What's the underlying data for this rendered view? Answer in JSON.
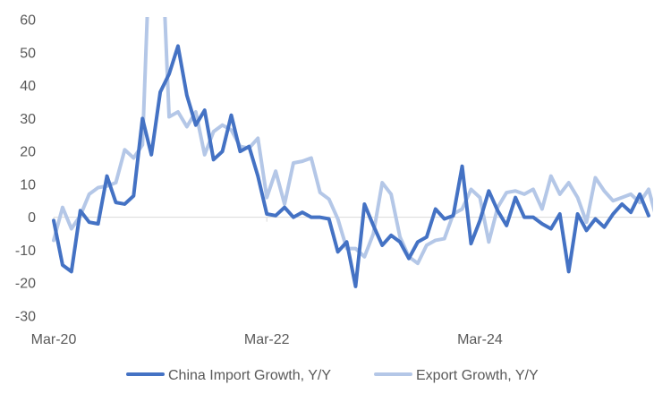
{
  "chart_data": {
    "type": "line",
    "title": "",
    "xlabel": "",
    "ylabel": "",
    "ylim": [
      -30,
      60
    ],
    "yticks": [
      -30,
      -20,
      -10,
      0,
      10,
      20,
      30,
      40,
      50,
      60
    ],
    "grid": false,
    "legend_position": "bottom",
    "x_tick_labels": [
      "Mar-20",
      "Mar-22",
      "Mar-24"
    ],
    "x_tick_index": [
      0,
      24,
      48
    ],
    "series": [
      {
        "name": "China Import Growth, Y/Y",
        "color": "#4472C4",
        "values": [
          -1,
          -14.5,
          -16.5,
          2,
          -1.5,
          -2,
          12.5,
          4.5,
          4,
          6.5,
          30,
          19,
          38,
          43.5,
          52,
          37,
          28,
          32.5,
          17.5,
          20,
          31,
          20,
          21.5,
          12.5,
          1,
          0.5,
          3,
          0,
          1.5,
          0,
          0,
          -0.5,
          -10.5,
          -7.5,
          -21,
          4,
          -2.5,
          -8.5,
          -5.5,
          -7.5,
          -12.5,
          -7.5,
          -6,
          2.5,
          -0.5,
          0.5,
          15.5,
          -8,
          -1,
          8,
          2,
          -2.5,
          6,
          0,
          0,
          -2,
          -3.5,
          1,
          -16.5,
          1,
          -4,
          -0.5,
          -3,
          1,
          4,
          1.5,
          7,
          0.5
        ]
      },
      {
        "name": "Export Growth, Y/Y",
        "color": "#B4C7E7",
        "values": [
          -7,
          3,
          -3.5,
          0.5,
          7,
          9,
          9.5,
          10.5,
          20.5,
          18,
          22,
          95,
          95,
          30.5,
          32,
          27.5,
          32,
          19,
          26,
          28,
          26.5,
          21.5,
          21,
          24,
          6,
          14,
          4,
          16.5,
          17,
          18,
          7.5,
          5.5,
          -0.5,
          -9.5,
          -9.5,
          -12,
          -5,
          10.5,
          7,
          -6,
          -12,
          -14,
          -8.5,
          -7,
          -6.5,
          1,
          2.5,
          8.5,
          6,
          -7.5,
          3,
          7.5,
          8,
          7,
          8.5,
          2.5,
          12.5,
          7,
          10.5,
          6,
          -1.5,
          12,
          8,
          5,
          6,
          7,
          4.5,
          8.5,
          -1.5
        ]
      }
    ]
  }
}
